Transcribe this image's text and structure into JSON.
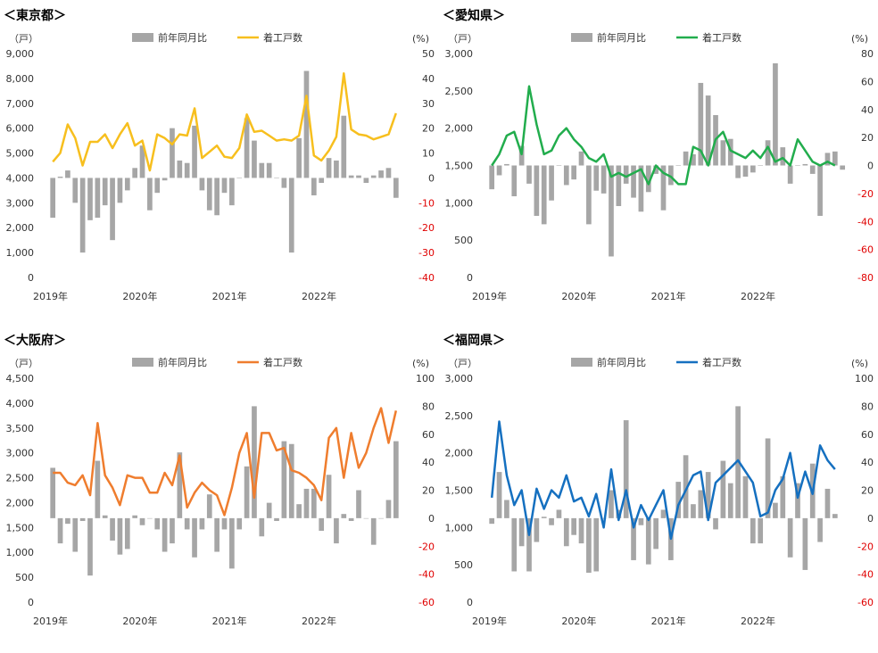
{
  "legend": {
    "bar_label": "前年同月比",
    "line_label": "着工戸数"
  },
  "units": {
    "left": "（戸）",
    "right": "(%)"
  },
  "x_labels": [
    "2019年",
    "2020年",
    "2021年",
    "2022年"
  ],
  "colors": {
    "bar": "#a6a6a6",
    "negative_tick": "#e00000",
    "tokyo": "#f7bf1e",
    "aichi": "#22ad4d",
    "osaka": "#ef7d2e",
    "fukuoka": "#1570c0"
  },
  "chart_data": [
    {
      "type": "bar+line",
      "title": "＜東京都＞",
      "line_color_key": "tokyo",
      "left_axis": {
        "min": 0,
        "max": 9000,
        "step": 1000,
        "ticks": [
          "0",
          "1,000",
          "2,000",
          "3,000",
          "4,000",
          "5,000",
          "6,000",
          "7,000",
          "8,000",
          "9,000"
        ]
      },
      "right_axis": {
        "min": -40,
        "max": 50,
        "step": 10,
        "ticks": [
          "-40",
          "-30",
          "-20",
          "-10",
          "0",
          "10",
          "20",
          "30",
          "40",
          "50"
        ]
      },
      "series": [
        {
          "name": "前年同月比",
          "axis": "right",
          "kind": "bar",
          "values": [
            -16,
            0.5,
            3,
            -10,
            -30,
            -17,
            -16,
            -11,
            -25,
            -10,
            -5,
            4,
            13,
            -13,
            -6,
            -1,
            20,
            7,
            6,
            21,
            -5,
            -13,
            -15,
            -6,
            -11,
            0,
            24,
            15,
            6,
            6,
            0,
            -4,
            -30,
            16,
            43,
            -7,
            -2,
            8,
            7,
            25,
            1,
            1,
            -2,
            1,
            3,
            4,
            -8
          ]
        },
        {
          "name": "着工戸数",
          "axis": "left",
          "kind": "line",
          "values": [
            4650,
            5000,
            6150,
            5600,
            4500,
            5450,
            5450,
            5750,
            5200,
            5750,
            6200,
            5300,
            5500,
            4300,
            5750,
            5600,
            5350,
            5750,
            5700,
            6800,
            4800,
            5050,
            5300,
            4850,
            4800,
            5200,
            6550,
            5850,
            5900,
            5700,
            5500,
            5550,
            5500,
            5700,
            7300,
            4900,
            4700,
            5100,
            5650,
            8200,
            5950,
            5750,
            5700,
            5550,
            5650,
            5750,
            6600
          ]
        }
      ]
    },
    {
      "type": "bar+line",
      "title": "＜愛知県＞",
      "line_color_key": "aichi",
      "left_axis": {
        "min": 0,
        "max": 3000,
        "step": 500,
        "ticks": [
          "0",
          "500",
          "1,000",
          "1,500",
          "2,000",
          "2,500",
          "3,000"
        ]
      },
      "right_axis": {
        "min": -80,
        "max": 80,
        "step": 20,
        "ticks": [
          "-80",
          "-60",
          "-40",
          "-20",
          "0",
          "20",
          "40",
          "60",
          "80"
        ]
      },
      "series": [
        {
          "name": "前年同月比",
          "axis": "right",
          "kind": "bar",
          "values": [
            -17,
            -7,
            1,
            -22,
            14,
            -13,
            -36,
            -42,
            -25,
            0,
            -14,
            -10,
            10,
            -42,
            -18,
            -20,
            -65,
            -29,
            -13,
            -23,
            -33,
            -19,
            -6,
            -32,
            -14,
            0,
            10,
            8,
            59,
            50,
            36,
            18,
            19,
            -9,
            -8,
            -5,
            0,
            18,
            73,
            13,
            -13,
            0,
            1,
            -6,
            -36,
            9,
            10,
            -3
          ]
        },
        {
          "name": "着工戸数",
          "axis": "left",
          "kind": "line",
          "values": [
            1500,
            1650,
            1900,
            1950,
            1650,
            2560,
            2050,
            1650,
            1700,
            1900,
            2000,
            1850,
            1750,
            1600,
            1550,
            1650,
            1350,
            1400,
            1350,
            1400,
            1450,
            1250,
            1500,
            1400,
            1350,
            1250,
            1250,
            1750,
            1700,
            1500,
            1850,
            1950,
            1700,
            1650,
            1600,
            1700,
            1600,
            1750,
            1550,
            1600,
            1500,
            1850,
            1700,
            1550,
            1500,
            1550,
            1500
          ]
        }
      ]
    },
    {
      "type": "bar+line",
      "title": "＜大阪府＞",
      "line_color_key": "osaka",
      "left_axis": {
        "min": 0,
        "max": 4500,
        "step": 500,
        "ticks": [
          "0",
          "500",
          "1,000",
          "1,500",
          "2,000",
          "2,500",
          "3,000",
          "3,500",
          "4,000",
          "4,500"
        ]
      },
      "right_axis": {
        "min": -60,
        "max": 100,
        "step": 20,
        "ticks": [
          "-60",
          "-40",
          "-20",
          "0",
          "20",
          "40",
          "60",
          "80",
          "100"
        ]
      },
      "series": [
        {
          "name": "前年同月比",
          "axis": "right",
          "kind": "bar",
          "values": [
            36,
            -18,
            -4,
            -24,
            -2,
            -41,
            41,
            2,
            -16,
            -26,
            -22,
            2,
            -5,
            0,
            -8,
            -24,
            -18,
            47,
            -8,
            -28,
            -8,
            17,
            -24,
            -8,
            -36,
            -8,
            37,
            80,
            -13,
            11,
            -2,
            55,
            53,
            10,
            21,
            21,
            -9,
            31,
            -18,
            3,
            -2,
            20,
            0,
            -19,
            0,
            13,
            55
          ]
        },
        {
          "name": "着工戸数",
          "axis": "left",
          "kind": "line",
          "values": [
            2600,
            2600,
            2400,
            2350,
            2550,
            2150,
            3600,
            2550,
            2300,
            1950,
            2550,
            2500,
            2500,
            2200,
            2200,
            2600,
            2350,
            2950,
            1900,
            2200,
            2400,
            2250,
            2150,
            1750,
            2300,
            3000,
            3400,
            2100,
            3400,
            3400,
            3050,
            3100,
            2650,
            2600,
            2500,
            2350,
            2050,
            3300,
            3500,
            2500,
            3400,
            2700,
            3000,
            3500,
            3900,
            3200,
            3850
          ]
        }
      ]
    },
    {
      "type": "bar+line",
      "title": "＜福岡県＞",
      "line_color_key": "fukuoka",
      "left_axis": {
        "min": 0,
        "max": 3000,
        "step": 500,
        "ticks": [
          "0",
          "500",
          "1,000",
          "1,500",
          "2,000",
          "2,500",
          "3,000"
        ]
      },
      "right_axis": {
        "min": -60,
        "max": 100,
        "step": 20,
        "ticks": [
          "-60",
          "-40",
          "-20",
          "0",
          "20",
          "40",
          "60",
          "80",
          "100"
        ]
      },
      "series": [
        {
          "name": "前年同月比",
          "axis": "right",
          "kind": "bar",
          "values": [
            -4,
            33,
            13,
            -38,
            -20,
            -38,
            -17,
            1,
            -5,
            6,
            -20,
            -12,
            -18,
            -39,
            -38,
            0,
            20,
            6,
            70,
            -30,
            -5,
            -33,
            -22,
            6,
            -30,
            26,
            45,
            10,
            20,
            33,
            -8,
            41,
            25,
            80,
            30,
            -18,
            -18,
            57,
            11,
            30,
            -28,
            25,
            -37,
            39,
            -17,
            21,
            3
          ]
        },
        {
          "name": "着工戸数",
          "axis": "left",
          "kind": "line",
          "values": [
            1400,
            2420,
            1700,
            1300,
            1500,
            900,
            1520,
            1250,
            1500,
            1400,
            1700,
            1350,
            1400,
            1150,
            1450,
            1000,
            1780,
            1100,
            1500,
            1000,
            1300,
            1100,
            1300,
            1500,
            850,
            1300,
            1500,
            1700,
            1750,
            1100,
            1600,
            1700,
            1800,
            1900,
            1750,
            1600,
            1150,
            1200,
            1500,
            1650,
            2000,
            1400,
            1750,
            1450,
            2100,
            1900,
            1780
          ]
        }
      ]
    }
  ]
}
